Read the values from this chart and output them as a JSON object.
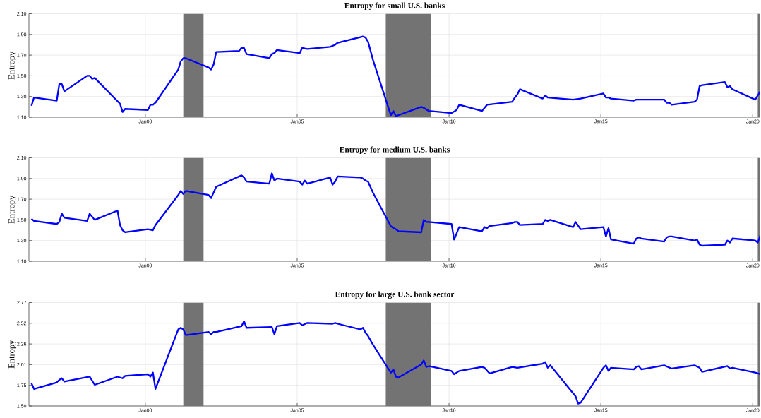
{
  "chart_data": [
    {
      "type": "line",
      "title": "Entropy for small U.S. banks",
      "ylabel": "Entropy",
      "grid": true,
      "xlim": [
        "1996-03",
        "2020-04"
      ],
      "ylim": [
        1.1,
        2.1
      ],
      "xticks": [
        {
          "value": "2000-01",
          "label": "Jan00"
        },
        {
          "value": "2005-01",
          "label": "Jan05"
        },
        {
          "value": "2010-01",
          "label": "Jan10"
        },
        {
          "value": "2015-01",
          "label": "Jan15"
        },
        {
          "value": "2020-01",
          "label": "Jan20"
        }
      ],
      "yticks": [
        {
          "value": 1.1,
          "label": "1.10"
        },
        {
          "value": 1.3,
          "label": "1.30"
        },
        {
          "value": 1.5,
          "label": "1.50"
        },
        {
          "value": 1.7,
          "label": "1.70"
        },
        {
          "value": 1.9,
          "label": "1.90"
        },
        {
          "value": 2.1,
          "label": "2.10"
        }
      ],
      "bands": [
        {
          "axis": "x",
          "from": "2001-04",
          "to": "2001-12",
          "color": "#737373"
        },
        {
          "axis": "x",
          "from": "2007-12",
          "to": "2009-06",
          "color": "#737373"
        },
        {
          "axis": "x",
          "from": "2020-03",
          "to": "2020-04",
          "color": "#737373"
        }
      ],
      "x": [
        "1996-04",
        "1996-05",
        "1997-02",
        "1997-03",
        "1997-04",
        "1997-05",
        "1998-02",
        "1998-03",
        "1998-04",
        "1998-05",
        "1999-03",
        "1999-04",
        "1999-05",
        "2000-02",
        "2000-03",
        "2000-04",
        "2000-05",
        "2001-02",
        "2001-03",
        "2001-04",
        "2001-05",
        "2002-02",
        "2002-03",
        "2002-04",
        "2002-05",
        "2003-02",
        "2003-03",
        "2003-04",
        "2003-05",
        "2004-02",
        "2004-03",
        "2004-04",
        "2004-05",
        "2005-02",
        "2005-03",
        "2005-05",
        "2006-02",
        "2006-04",
        "2006-05",
        "2007-03",
        "2007-04",
        "2007-05",
        "2007-07",
        "2008-02",
        "2008-03",
        "2008-04",
        "2009-02",
        "2009-03",
        "2009-05",
        "2010-02",
        "2010-04",
        "2010-05",
        "2011-02",
        "2011-04",
        "2012-02",
        "2012-03",
        "2012-04",
        "2012-05",
        "2013-02",
        "2013-03",
        "2013-04",
        "2014-02",
        "2014-05",
        "2015-02",
        "2015-03",
        "2015-04",
        "2015-05",
        "2016-02",
        "2016-03",
        "2017-02",
        "2017-03",
        "2017-04",
        "2017-05",
        "2018-02",
        "2018-03",
        "2018-04",
        "2018-05",
        "2019-02",
        "2019-03",
        "2019-04",
        "2019-05",
        "2020-02",
        "2020-04"
      ],
      "series": [
        {
          "color": "#0000ff",
          "values": [
            1.21,
            1.29,
            1.26,
            1.42,
            1.42,
            1.35,
            1.5,
            1.5,
            1.47,
            1.48,
            1.23,
            1.15,
            1.18,
            1.17,
            1.22,
            1.22,
            1.24,
            1.56,
            1.64,
            1.67,
            1.67,
            1.58,
            1.56,
            1.61,
            1.73,
            1.74,
            1.77,
            1.77,
            1.71,
            1.67,
            1.71,
            1.72,
            1.75,
            1.72,
            1.77,
            1.76,
            1.78,
            1.8,
            1.82,
            1.88,
            1.87,
            1.83,
            1.65,
            1.12,
            1.16,
            1.11,
            1.2,
            1.19,
            1.16,
            1.14,
            1.17,
            1.22,
            1.16,
            1.22,
            1.25,
            1.29,
            1.32,
            1.37,
            1.28,
            1.31,
            1.29,
            1.27,
            1.28,
            1.33,
            1.29,
            1.29,
            1.28,
            1.26,
            1.27,
            1.27,
            1.24,
            1.24,
            1.22,
            1.25,
            1.27,
            1.4,
            1.41,
            1.44,
            1.39,
            1.4,
            1.37,
            1.27,
            1.35
          ]
        }
      ]
    },
    {
      "type": "line",
      "title": "Entropy for medium U.S. banks",
      "ylabel": "Entropy",
      "grid": true,
      "xlim": [
        "1996-03",
        "2020-04"
      ],
      "ylim": [
        1.1,
        2.1
      ],
      "xticks": [
        {
          "value": "2000-01",
          "label": "Jan00"
        },
        {
          "value": "2005-01",
          "label": "Jan05"
        },
        {
          "value": "2010-01",
          "label": "Jan10"
        },
        {
          "value": "2015-01",
          "label": "Jan15"
        },
        {
          "value": "2020-01",
          "label": "Jan20"
        }
      ],
      "yticks": [
        {
          "value": 1.1,
          "label": "1.10"
        },
        {
          "value": 1.3,
          "label": "1.30"
        },
        {
          "value": 1.5,
          "label": "1.50"
        },
        {
          "value": 1.7,
          "label": "1.70"
        },
        {
          "value": 1.9,
          "label": "1.90"
        },
        {
          "value": 2.1,
          "label": "2.10"
        }
      ],
      "bands": [
        {
          "axis": "x",
          "from": "2001-04",
          "to": "2001-12",
          "color": "#737373"
        },
        {
          "axis": "x",
          "from": "2007-12",
          "to": "2009-06",
          "color": "#737373"
        },
        {
          "axis": "x",
          "from": "2020-03",
          "to": "2020-04",
          "color": "#737373"
        }
      ],
      "x": [
        "1996-04",
        "1996-05",
        "1997-02",
        "1997-03",
        "1997-04",
        "1997-05",
        "1998-02",
        "1998-03",
        "1998-05",
        "1999-02",
        "1999-03",
        "1999-04",
        "1999-05",
        "2000-02",
        "2000-04",
        "2000-05",
        "2001-02",
        "2001-03",
        "2001-04",
        "2001-05",
        "2002-02",
        "2002-03",
        "2002-05",
        "2003-03",
        "2003-04",
        "2003-05",
        "2004-02",
        "2004-03",
        "2004-04",
        "2004-05",
        "2005-02",
        "2005-03",
        "2005-04",
        "2005-05",
        "2006-02",
        "2006-03",
        "2006-04",
        "2006-05",
        "2007-02",
        "2007-03",
        "2007-04",
        "2007-05",
        "2007-07",
        "2008-02",
        "2008-03",
        "2008-04",
        "2008-05",
        "2009-02",
        "2009-03",
        "2009-04",
        "2009-05",
        "2010-02",
        "2010-03",
        "2010-05",
        "2011-02",
        "2011-03",
        "2011-04",
        "2011-05",
        "2012-02",
        "2012-03",
        "2012-04",
        "2012-05",
        "2013-02",
        "2013-03",
        "2013-04",
        "2013-05",
        "2014-02",
        "2014-03",
        "2014-05",
        "2015-02",
        "2015-03",
        "2015-04",
        "2015-05",
        "2016-02",
        "2016-03",
        "2016-04",
        "2016-05",
        "2017-02",
        "2017-03",
        "2017-04",
        "2017-05",
        "2018-02",
        "2018-03",
        "2018-04",
        "2018-05",
        "2019-02",
        "2019-03",
        "2019-04",
        "2019-05",
        "2020-02",
        "2020-03",
        "2020-04"
      ],
      "series": [
        {
          "color": "#0000ff",
          "values": [
            1.51,
            1.49,
            1.46,
            1.48,
            1.56,
            1.52,
            1.49,
            1.56,
            1.5,
            1.59,
            1.45,
            1.4,
            1.38,
            1.41,
            1.4,
            1.45,
            1.74,
            1.78,
            1.75,
            1.78,
            1.74,
            1.71,
            1.82,
            1.93,
            1.91,
            1.87,
            1.85,
            1.95,
            1.88,
            1.9,
            1.87,
            1.84,
            1.88,
            1.85,
            1.91,
            1.84,
            1.87,
            1.92,
            1.91,
            1.9,
            1.88,
            1.87,
            1.76,
            1.44,
            1.42,
            1.41,
            1.39,
            1.38,
            1.5,
            1.48,
            1.48,
            1.46,
            1.31,
            1.43,
            1.39,
            1.43,
            1.42,
            1.44,
            1.47,
            1.48,
            1.48,
            1.45,
            1.46,
            1.5,
            1.49,
            1.5,
            1.43,
            1.48,
            1.41,
            1.43,
            1.34,
            1.42,
            1.31,
            1.27,
            1.32,
            1.33,
            1.32,
            1.29,
            1.33,
            1.34,
            1.34,
            1.3,
            1.31,
            1.26,
            1.25,
            1.26,
            1.3,
            1.28,
            1.32,
            1.3,
            1.28,
            1.35
          ]
        }
      ]
    },
    {
      "type": "line",
      "title": "Entropy for large U.S. bank sector",
      "ylabel": "Entropy",
      "grid": true,
      "xlim": [
        "1996-03",
        "2020-04"
      ],
      "ylim": [
        1.5,
        2.77
      ],
      "xticks": [
        {
          "value": "2000-01",
          "label": "Jan00"
        },
        {
          "value": "2005-01",
          "label": "Jan05"
        },
        {
          "value": "2010-01",
          "label": "Jan10"
        },
        {
          "value": "2015-01",
          "label": "Jan15"
        },
        {
          "value": "2020-01",
          "label": "Jan20"
        }
      ],
      "yticks": [
        {
          "value": 1.5,
          "label": "1.50"
        },
        {
          "value": 1.754,
          "label": "1.75"
        },
        {
          "value": 2.008,
          "label": "2.01"
        },
        {
          "value": 2.262,
          "label": "2.26"
        },
        {
          "value": 2.516,
          "label": "2.52"
        },
        {
          "value": 2.77,
          "label": "2.77"
        }
      ],
      "bands": [
        {
          "axis": "x",
          "from": "2001-04",
          "to": "2001-12",
          "color": "#737373"
        },
        {
          "axis": "x",
          "from": "2007-12",
          "to": "2009-06",
          "color": "#737373"
        },
        {
          "axis": "x",
          "from": "2020-03",
          "to": "2020-04",
          "color": "#737373"
        }
      ],
      "x": [
        "1996-04",
        "1996-05",
        "1997-02",
        "1997-03",
        "1997-04",
        "1997-05",
        "1998-03",
        "1998-05",
        "1999-02",
        "1999-04",
        "1999-05",
        "2000-02",
        "2000-03",
        "2000-04",
        "2000-05",
        "2001-02",
        "2001-03",
        "2001-04",
        "2001-05",
        "2002-02",
        "2002-03",
        "2002-04",
        "2002-05",
        "2003-03",
        "2003-04",
        "2003-05",
        "2004-03",
        "2004-04",
        "2004-05",
        "2005-02",
        "2005-03",
        "2005-05",
        "2006-03",
        "2006-04",
        "2006-05",
        "2007-02",
        "2007-03",
        "2007-04",
        "2007-05",
        "2007-07",
        "2008-02",
        "2008-03",
        "2008-04",
        "2008-05",
        "2009-02",
        "2009-03",
        "2009-04",
        "2009-05",
        "2010-02",
        "2010-03",
        "2010-05",
        "2011-02",
        "2011-03",
        "2011-05",
        "2012-02",
        "2012-04",
        "2013-02",
        "2013-03",
        "2013-04",
        "2013-05",
        "2014-03",
        "2014-04",
        "2014-05",
        "2015-02",
        "2015-03",
        "2015-04",
        "2015-05",
        "2016-02",
        "2016-03",
        "2016-04",
        "2016-05",
        "2017-02",
        "2017-05",
        "2018-02",
        "2018-04",
        "2018-05",
        "2019-03",
        "2019-04",
        "2019-05",
        "2020-02",
        "2020-04"
      ],
      "series": [
        {
          "color": "#0000ff",
          "values": [
            1.78,
            1.71,
            1.79,
            1.82,
            1.84,
            1.8,
            1.86,
            1.76,
            1.86,
            1.84,
            1.87,
            1.89,
            1.86,
            1.91,
            1.71,
            2.44,
            2.46,
            2.44,
            2.37,
            2.41,
            2.38,
            2.41,
            2.41,
            2.48,
            2.54,
            2.46,
            2.47,
            2.38,
            2.48,
            2.52,
            2.49,
            2.52,
            2.51,
            2.52,
            2.51,
            2.44,
            2.46,
            2.4,
            2.36,
            2.25,
            1.91,
            1.95,
            1.86,
            1.85,
            2.01,
            2.06,
            1.98,
            1.99,
            1.93,
            1.89,
            1.93,
            1.98,
            1.97,
            1.9,
            1.98,
            1.97,
            2.02,
            2.04,
            1.97,
            2.0,
            1.62,
            1.53,
            1.54,
            1.97,
            2.0,
            1.93,
            1.97,
            1.95,
            1.98,
            1.99,
            1.95,
            2.0,
            1.96,
            2.0,
            1.97,
            1.92,
            1.99,
            1.96,
            1.97,
            1.91,
            1.89
          ]
        }
      ]
    }
  ]
}
